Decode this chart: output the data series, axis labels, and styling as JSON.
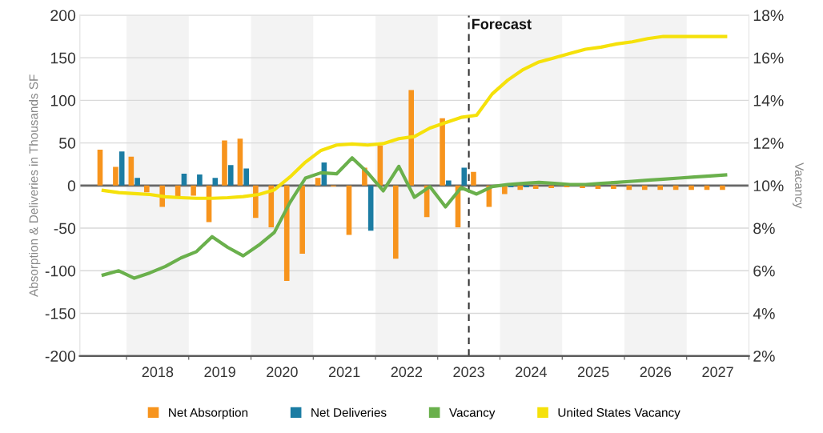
{
  "chart_data": {
    "type": "bar",
    "ylabel": "Absorption & Deliveries in Thousands SF",
    "y2label": "Vacancy",
    "x": [
      2017.625,
      2017.875,
      2018.125,
      2018.375,
      2018.625,
      2018.875,
      2019.125,
      2019.375,
      2019.625,
      2019.875,
      2020.125,
      2020.375,
      2020.625,
      2020.875,
      2021.125,
      2021.375,
      2021.625,
      2021.875,
      2022.125,
      2022.375,
      2022.625,
      2022.875,
      2023.125,
      2023.375,
      2023.625,
      2023.875,
      2024.125,
      2024.375,
      2024.625,
      2024.875,
      2025.125,
      2025.375,
      2025.625,
      2025.875,
      2026.125,
      2026.375,
      2026.625,
      2026.875,
      2027.125,
      2027.375,
      2027.625
    ],
    "series": [
      {
        "name": "Net Absorption",
        "color": "#f7941d",
        "values": [
          42,
          22,
          34,
          -8,
          -25,
          -13,
          -12,
          -43,
          53,
          55,
          -38,
          -49,
          -112,
          -80,
          9,
          -1,
          -58,
          21,
          47,
          -86,
          112,
          -37,
          79,
          -49,
          16,
          -25,
          -10,
          -5,
          -4,
          -3,
          -2,
          -3,
          -4,
          -4,
          -5,
          -5,
          -5,
          -5,
          -5,
          -5,
          -5
        ]
      },
      {
        "name": "Net Deliveries",
        "color": "#1b7ca3",
        "values": [
          null,
          40,
          9,
          null,
          null,
          14,
          13,
          9,
          24,
          20,
          null,
          null,
          null,
          null,
          27,
          null,
          null,
          -53,
          null,
          null,
          null,
          null,
          6,
          21,
          null,
          null,
          -2,
          -2,
          null,
          null,
          null,
          null,
          null,
          null,
          null,
          null,
          null,
          null,
          null,
          null,
          null
        ]
      },
      {
        "name": "Vacancy",
        "type": "line",
        "axis": "y2",
        "color": "#6ab04c",
        "values": [
          5.8,
          6.0,
          5.65,
          5.9,
          6.2,
          6.6,
          6.9,
          7.6,
          7.1,
          6.7,
          7.2,
          7.8,
          9.2,
          10.35,
          10.6,
          10.55,
          11.3,
          10.6,
          9.75,
          10.9,
          9.45,
          9.95,
          9.0,
          9.9,
          9.6,
          9.95,
          10.05,
          10.1,
          10.15,
          10.1,
          10.05,
          10.05,
          10.1,
          10.15,
          10.2,
          10.25,
          10.3,
          10.35,
          10.4,
          10.45,
          10.5
        ]
      },
      {
        "name": "United States Vacancy",
        "type": "line",
        "axis": "y2",
        "color": "#f5e10a",
        "values": [
          9.77,
          9.67,
          9.62,
          9.58,
          9.47,
          9.43,
          9.4,
          9.4,
          9.43,
          9.48,
          9.58,
          9.8,
          10.4,
          11.1,
          11.65,
          11.9,
          11.95,
          11.9,
          11.97,
          12.2,
          12.3,
          12.7,
          12.95,
          13.2,
          13.3,
          14.3,
          14.95,
          15.45,
          15.8,
          16.0,
          16.2,
          16.4,
          16.5,
          16.65,
          16.75,
          16.9,
          17.0,
          17.0,
          17.0,
          17.0,
          17.0
        ]
      }
    ],
    "xlim": [
      2017.25,
      2028.0
    ],
    "xticks": [
      {
        "value": 2018,
        "label": null
      },
      {
        "value": 2018.5,
        "label": "2018"
      },
      {
        "value": 2019,
        "label": null
      },
      {
        "value": 2019.5,
        "label": "2019"
      },
      {
        "value": 2020,
        "label": null
      },
      {
        "value": 2020.5,
        "label": "2020"
      },
      {
        "value": 2021,
        "label": null
      },
      {
        "value": 2021.5,
        "label": "2021"
      },
      {
        "value": 2022,
        "label": null
      },
      {
        "value": 2022.5,
        "label": "2022"
      },
      {
        "value": 2023,
        "label": null
      },
      {
        "value": 2023.5,
        "label": "2023"
      },
      {
        "value": 2024,
        "label": null
      },
      {
        "value": 2024.5,
        "label": "2024"
      },
      {
        "value": 2025,
        "label": null
      },
      {
        "value": 2025.5,
        "label": "2025"
      },
      {
        "value": 2026,
        "label": null
      },
      {
        "value": 2026.5,
        "label": "2026"
      },
      {
        "value": 2027,
        "label": null
      },
      {
        "value": 2027.5,
        "label": "2027"
      },
      {
        "value": 2028,
        "label": null
      }
    ],
    "ylim": [
      -200,
      200
    ],
    "yticks": [
      -200,
      -150,
      -100,
      -50,
      0,
      50,
      100,
      150,
      200
    ],
    "y2lim": [
      2,
      18
    ],
    "y2ticks": [
      {
        "value": 2,
        "label": "2%"
      },
      {
        "value": 4,
        "label": "4%"
      },
      {
        "value": 6,
        "label": "6%"
      },
      {
        "value": 8,
        "label": "8%"
      },
      {
        "value": 10,
        "label": "10%"
      },
      {
        "value": 12,
        "label": "12%"
      },
      {
        "value": 14,
        "label": "14%"
      },
      {
        "value": 16,
        "label": "16%"
      },
      {
        "value": 18,
        "label": "18%"
      }
    ],
    "ref_lines": [
      {
        "axis": "x",
        "value": 2023.5,
        "label": "Forecast",
        "color": "#333333",
        "line_style": "dashed"
      },
      {
        "axis": "y",
        "value": 0,
        "label": null,
        "color": "#666666",
        "line_style": "solid"
      }
    ],
    "bands": [
      {
        "axis": "x",
        "from": 2018,
        "to": 2019,
        "label": null,
        "color": "#f3f3f3"
      },
      {
        "axis": "x",
        "from": 2020,
        "to": 2021,
        "label": null,
        "color": "#f3f3f3"
      },
      {
        "axis": "x",
        "from": 2022,
        "to": 2023,
        "label": null,
        "color": "#f3f3f3"
      },
      {
        "axis": "x",
        "from": 2024,
        "to": 2025,
        "label": null,
        "color": "#f3f3f3"
      },
      {
        "axis": "x",
        "from": 2026,
        "to": 2027,
        "label": null,
        "color": "#f3f3f3"
      }
    ],
    "grid": "y",
    "legend": "bottom",
    "marker": "none",
    "line_style": "solid"
  }
}
